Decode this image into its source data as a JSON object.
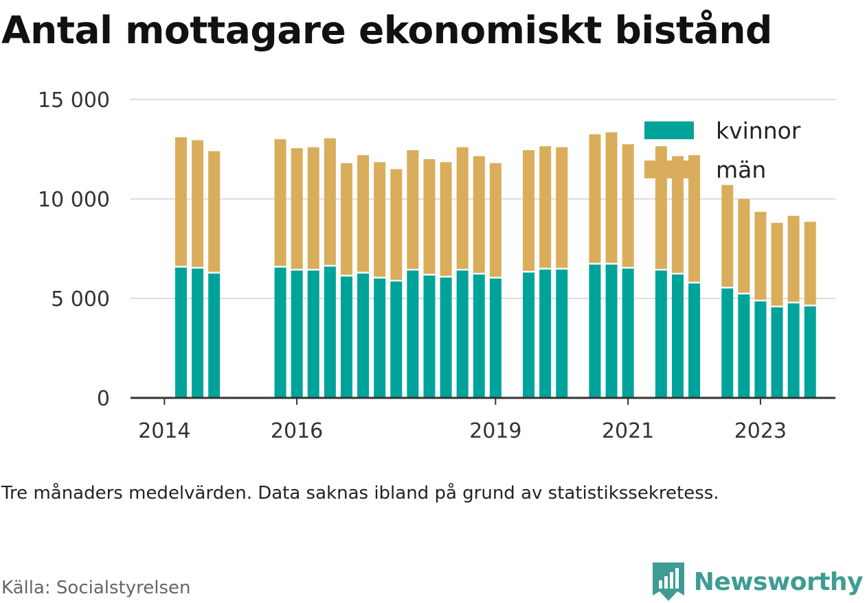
{
  "title": "Antal mottagare ekonomiskt bistånd",
  "note": "Tre månaders medelvärden. Data saknas ibland på grund av statistikssekretess.",
  "source": "Källa: Socialstyrelsen",
  "brand": {
    "name": "Newsworthy",
    "icon": "newsworthy-logo-icon",
    "color": "#3e9c93"
  },
  "colors": {
    "kvinnor": "#00a39a",
    "man": "#d9ad5b",
    "grid": "#dddddd",
    "axis": "#333333"
  },
  "chart_data": {
    "type": "bar",
    "stacked": true,
    "ylim": [
      0,
      15000
    ],
    "yticks": [
      0,
      5000,
      10000,
      15000
    ],
    "ytick_labels": [
      "0",
      "5 000",
      "10 000",
      "15 000"
    ],
    "xtick_labels": [
      "2014",
      "2016",
      "2019",
      "2021",
      "2023"
    ],
    "legend": {
      "position": "top-right",
      "entries": [
        "kvinnor",
        "män"
      ]
    },
    "grid": true,
    "series": [
      {
        "name": "kvinnor",
        "key": "kvinnor"
      },
      {
        "name": "män",
        "key": "man"
      }
    ],
    "bars": [
      {
        "period": "2014 Q2",
        "kvinnor": 6550,
        "man": 6550
      },
      {
        "period": "2014 Q3",
        "kvinnor": 6500,
        "man": 6450
      },
      {
        "period": "2014 Q4",
        "kvinnor": 6250,
        "man": 6150
      },
      {
        "period": "2015 Q4",
        "kvinnor": 6550,
        "man": 6450
      },
      {
        "period": "2016 Q1",
        "kvinnor": 6400,
        "man": 6150
      },
      {
        "period": "2016 Q2",
        "kvinnor": 6400,
        "man": 6200
      },
      {
        "period": "2016 Q3",
        "kvinnor": 6600,
        "man": 6450
      },
      {
        "period": "2016 Q4",
        "kvinnor": 6100,
        "man": 5700
      },
      {
        "period": "2017 Q1",
        "kvinnor": 6250,
        "man": 5950
      },
      {
        "period": "2017 Q2",
        "kvinnor": 6000,
        "man": 5850
      },
      {
        "period": "2017 Q3",
        "kvinnor": 5850,
        "man": 5650
      },
      {
        "period": "2017 Q4",
        "kvinnor": 6400,
        "man": 6050
      },
      {
        "period": "2018 Q1",
        "kvinnor": 6150,
        "man": 5850
      },
      {
        "period": "2018 Q2",
        "kvinnor": 6050,
        "man": 5800
      },
      {
        "period": "2018 Q3",
        "kvinnor": 6400,
        "man": 6200
      },
      {
        "period": "2018 Q4",
        "kvinnor": 6200,
        "man": 5950
      },
      {
        "period": "2019 Q1",
        "kvinnor": 6000,
        "man": 5800
      },
      {
        "period": "2019 Q3",
        "kvinnor": 6300,
        "man": 6150
      },
      {
        "period": "2019 Q4",
        "kvinnor": 6450,
        "man": 6200
      },
      {
        "period": "2020 Q1",
        "kvinnor": 6450,
        "man": 6150
      },
      {
        "period": "2020 Q3",
        "kvinnor": 6700,
        "man": 6550
      },
      {
        "period": "2020 Q4",
        "kvinnor": 6700,
        "man": 6650
      },
      {
        "period": "2021 Q1",
        "kvinnor": 6500,
        "man": 6250
      },
      {
        "period": "2021 Q3",
        "kvinnor": 6400,
        "man": 6250
      },
      {
        "period": "2021 Q4",
        "kvinnor": 6200,
        "man": 5950
      },
      {
        "period": "2022 Q1",
        "kvinnor": 5750,
        "man": 6450
      },
      {
        "period": "2022 Q3",
        "kvinnor": 5500,
        "man": 5200
      },
      {
        "period": "2022 Q4",
        "kvinnor": 5200,
        "man": 4800
      },
      {
        "period": "2023 Q1",
        "kvinnor": 4850,
        "man": 4500
      },
      {
        "period": "2023 Q2",
        "kvinnor": 4550,
        "man": 4250
      },
      {
        "period": "2023 Q3",
        "kvinnor": 4750,
        "man": 4400
      },
      {
        "period": "2023 Q4",
        "kvinnor": 4600,
        "man": 4250
      }
    ]
  }
}
